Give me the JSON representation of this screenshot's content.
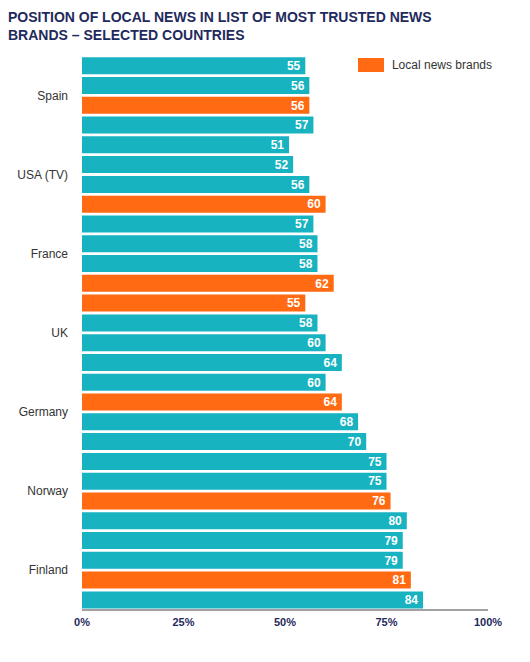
{
  "chart_data": {
    "type": "bar",
    "orientation": "horizontal",
    "title": "POSITION OF LOCAL NEWS IN LIST OF MOST TRUSTED NEWS BRANDS – SELECTED COUNTRIES",
    "categories": [
      null,
      "Spain",
      null,
      null,
      null,
      "USA (TV)",
      null,
      null,
      null,
      "France",
      null,
      null,
      null,
      "UK",
      null,
      null,
      null,
      "Germany",
      null,
      null,
      null,
      "Norway",
      null,
      null,
      null,
      "Finland",
      null,
      null
    ],
    "series": [
      {
        "color": "#17b3c1",
        "values": [
          55,
          56,
          null,
          57,
          51,
          52,
          56,
          null,
          57,
          58,
          58,
          null,
          null,
          58,
          60,
          64,
          60,
          null,
          68,
          70,
          75,
          75,
          null,
          80,
          79,
          79,
          null,
          84
        ]
      },
      {
        "name": "Local news brands",
        "color": "#ff6a13",
        "values": [
          null,
          null,
          56,
          null,
          null,
          null,
          null,
          60,
          null,
          null,
          null,
          62,
          55,
          null,
          null,
          null,
          null,
          64,
          null,
          null,
          null,
          null,
          76,
          null,
          null,
          null,
          81,
          null
        ]
      }
    ],
    "xlim": [
      0,
      100
    ],
    "xticks": [
      {
        "value": 0,
        "label": "0%"
      },
      {
        "value": 25,
        "label": "25%"
      },
      {
        "value": 50,
        "label": "50%"
      },
      {
        "value": 75,
        "label": "75%"
      },
      {
        "value": 100,
        "label": "100%"
      }
    ],
    "data_labels": true,
    "legend": "top-right",
    "grid": false
  }
}
